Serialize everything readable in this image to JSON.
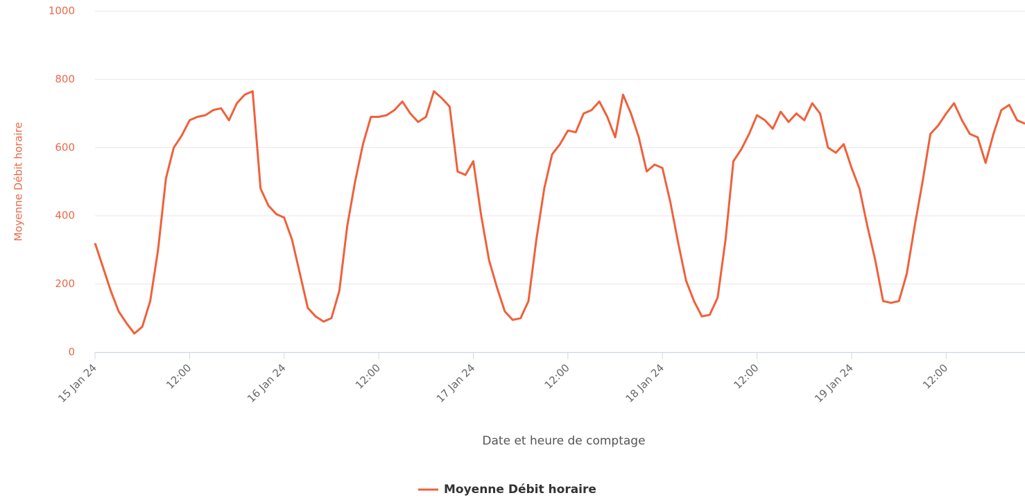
{
  "chart_data": {
    "type": "line",
    "x_label": "Date et heure de comptage",
    "y_label": "Moyenne Débit horaire",
    "x": [
      "2024-01-15T00:00",
      "2024-01-15T01:00",
      "2024-01-15T02:00",
      "2024-01-15T03:00",
      "2024-01-15T04:00",
      "2024-01-15T05:00",
      "2024-01-15T06:00",
      "2024-01-15T07:00",
      "2024-01-15T08:00",
      "2024-01-15T09:00",
      "2024-01-15T10:00",
      "2024-01-15T11:00",
      "2024-01-15T12:00",
      "2024-01-15T13:00",
      "2024-01-15T14:00",
      "2024-01-15T15:00",
      "2024-01-15T16:00",
      "2024-01-15T17:00",
      "2024-01-15T18:00",
      "2024-01-15T19:00",
      "2024-01-15T20:00",
      "2024-01-15T21:00",
      "2024-01-15T22:00",
      "2024-01-15T23:00",
      "2024-01-16T00:00",
      "2024-01-16T01:00",
      "2024-01-16T02:00",
      "2024-01-16T03:00",
      "2024-01-16T04:00",
      "2024-01-16T05:00",
      "2024-01-16T06:00",
      "2024-01-16T07:00",
      "2024-01-16T08:00",
      "2024-01-16T09:00",
      "2024-01-16T10:00",
      "2024-01-16T11:00",
      "2024-01-16T12:00",
      "2024-01-16T13:00",
      "2024-01-16T14:00",
      "2024-01-16T15:00",
      "2024-01-16T16:00",
      "2024-01-16T17:00",
      "2024-01-16T18:00",
      "2024-01-16T19:00",
      "2024-01-16T20:00",
      "2024-01-16T21:00",
      "2024-01-16T22:00",
      "2024-01-16T23:00",
      "2024-01-17T00:00",
      "2024-01-17T01:00",
      "2024-01-17T02:00",
      "2024-01-17T03:00",
      "2024-01-17T04:00",
      "2024-01-17T05:00",
      "2024-01-17T06:00",
      "2024-01-17T07:00",
      "2024-01-17T08:00",
      "2024-01-17T09:00",
      "2024-01-17T10:00",
      "2024-01-17T11:00",
      "2024-01-17T12:00",
      "2024-01-17T13:00",
      "2024-01-17T14:00",
      "2024-01-17T15:00",
      "2024-01-17T16:00",
      "2024-01-17T17:00",
      "2024-01-17T18:00",
      "2024-01-17T19:00",
      "2024-01-17T20:00",
      "2024-01-17T21:00",
      "2024-01-17T22:00",
      "2024-01-17T23:00",
      "2024-01-18T00:00",
      "2024-01-18T01:00",
      "2024-01-18T02:00",
      "2024-01-18T03:00",
      "2024-01-18T04:00",
      "2024-01-18T05:00",
      "2024-01-18T06:00",
      "2024-01-18T07:00",
      "2024-01-18T08:00",
      "2024-01-18T09:00",
      "2024-01-18T10:00",
      "2024-01-18T11:00",
      "2024-01-18T12:00",
      "2024-01-18T13:00",
      "2024-01-18T14:00",
      "2024-01-18T15:00",
      "2024-01-18T16:00",
      "2024-01-18T17:00",
      "2024-01-18T18:00",
      "2024-01-18T19:00",
      "2024-01-18T20:00",
      "2024-01-18T21:00",
      "2024-01-18T22:00",
      "2024-01-18T23:00",
      "2024-01-19T00:00",
      "2024-01-19T01:00",
      "2024-01-19T02:00",
      "2024-01-19T03:00",
      "2024-01-19T04:00",
      "2024-01-19T05:00",
      "2024-01-19T06:00",
      "2024-01-19T07:00",
      "2024-01-19T08:00",
      "2024-01-19T09:00",
      "2024-01-19T10:00",
      "2024-01-19T11:00",
      "2024-01-19T12:00",
      "2024-01-19T13:00",
      "2024-01-19T14:00",
      "2024-01-19T15:00",
      "2024-01-19T16:00",
      "2024-01-19T17:00",
      "2024-01-19T18:00",
      "2024-01-19T19:00",
      "2024-01-19T20:00",
      "2024-01-19T21:00",
      "2024-01-19T22:00"
    ],
    "series": [
      {
        "name": "Moyenne Débit horaire",
        "color": "#f0603a",
        "values": [
          320,
          250,
          180,
          120,
          85,
          55,
          75,
          150,
          300,
          510,
          600,
          635,
          680,
          690,
          695,
          710,
          715,
          680,
          730,
          755,
          765,
          480,
          430,
          405,
          395,
          330,
          230,
          130,
          105,
          90,
          100,
          180,
          370,
          500,
          610,
          690,
          690,
          695,
          710,
          735,
          700,
          675,
          690,
          765,
          745,
          720,
          530,
          520,
          560,
          400,
          270,
          190,
          120,
          95,
          100,
          150,
          330,
          480,
          580,
          610,
          650,
          645,
          700,
          710,
          735,
          690,
          630,
          755,
          700,
          630,
          530,
          550,
          540,
          440,
          320,
          210,
          150,
          105,
          110,
          160,
          330,
          560,
          595,
          640,
          695,
          680,
          655,
          705,
          675,
          700,
          680,
          730,
          700,
          600,
          585,
          610,
          540,
          480,
          370,
          270,
          150,
          145,
          150,
          230,
          370,
          500,
          640,
          665,
          700,
          730,
          680,
          640,
          630,
          555,
          640,
          710,
          725,
          680,
          670
        ]
      }
    ],
    "xlim": [
      "2024-01-15T00:00",
      "2024-01-19T22:00"
    ],
    "xticks": [
      {
        "value": "2024-01-15T00:00",
        "label": "15 Jan 24"
      },
      {
        "value": "2024-01-15T12:00",
        "label": "12:00"
      },
      {
        "value": "2024-01-16T00:00",
        "label": "16 Jan 24"
      },
      {
        "value": "2024-01-16T12:00",
        "label": "12:00"
      },
      {
        "value": "2024-01-17T00:00",
        "label": "17 Jan 24"
      },
      {
        "value": "2024-01-17T12:00",
        "label": "12:00"
      },
      {
        "value": "2024-01-18T00:00",
        "label": "18 Jan 24"
      },
      {
        "value": "2024-01-18T12:00",
        "label": "12:00"
      },
      {
        "value": "2024-01-19T00:00",
        "label": "19 Jan 24"
      },
      {
        "value": "2024-01-19T12:00",
        "label": "12:00"
      }
    ],
    "ylim": [
      0,
      1000
    ],
    "yticks": [
      0,
      200,
      400,
      600,
      800,
      1000
    ],
    "grid": true,
    "legend": "bottom"
  }
}
